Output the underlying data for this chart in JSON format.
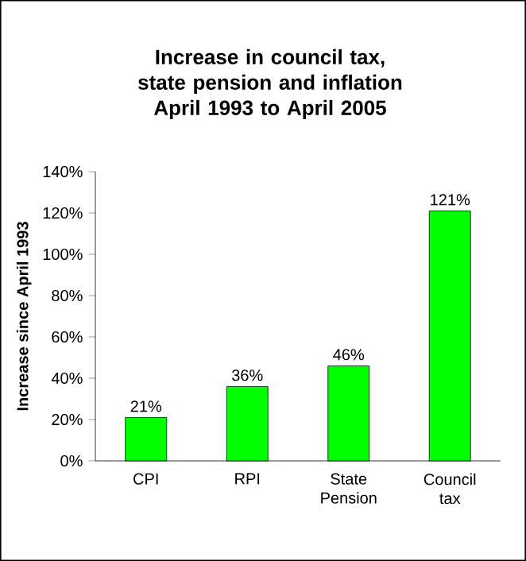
{
  "chart_data": {
    "type": "bar",
    "title": "Increase in council tax, state pension and inflation April 1993 to April 2005",
    "ylabel": "Increase since April 1993",
    "categories": [
      "CPI",
      "RPI",
      "State Pension",
      "Council tax"
    ],
    "values": [
      21,
      36,
      46,
      121
    ],
    "value_labels": [
      "21%",
      "36%",
      "46%",
      "121%"
    ],
    "color": "#00ff00",
    "ylim": [
      0,
      140
    ],
    "yticks": [
      {
        "value": 0,
        "label": "0%"
      },
      {
        "value": 20,
        "label": "20%"
      },
      {
        "value": 40,
        "label": "40%"
      },
      {
        "value": 60,
        "label": "60%"
      },
      {
        "value": 80,
        "label": "80%"
      },
      {
        "value": 100,
        "label": "100%"
      },
      {
        "value": 120,
        "label": "120%"
      },
      {
        "value": 140,
        "label": "140%"
      }
    ]
  }
}
